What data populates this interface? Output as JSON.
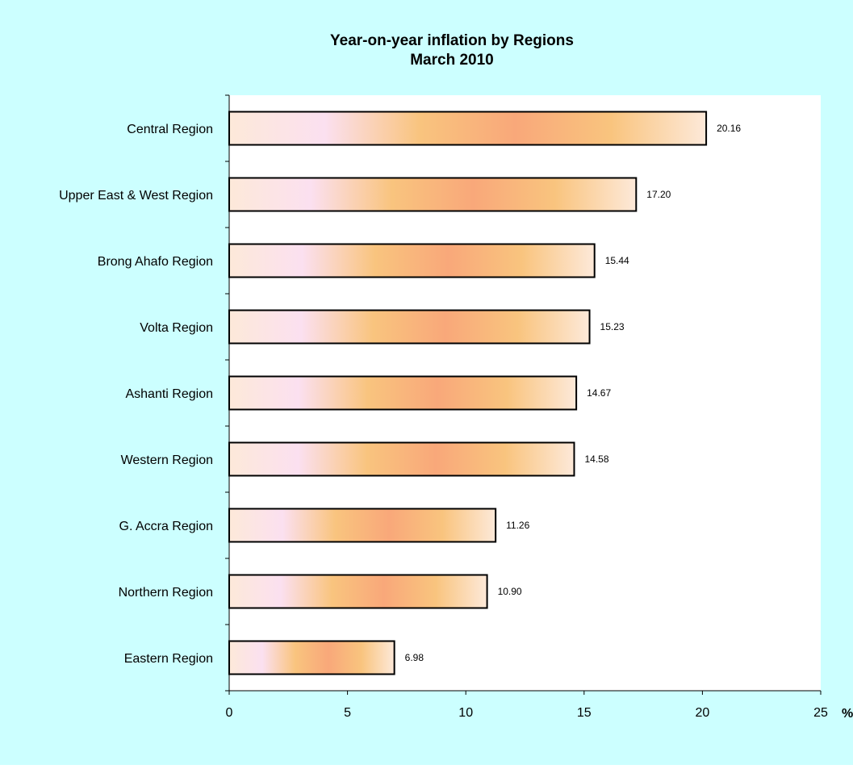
{
  "chart_data": {
    "type": "bar",
    "orientation": "horizontal",
    "title": "Year-on-year inflation by Regions",
    "subtitle": "March 2010",
    "categories": [
      "Central Region",
      "Upper East & West Region",
      "Brong Ahafo Region",
      "Volta Region",
      "Ashanti Region",
      "Western Region",
      "G. Accra Region",
      "Northern Region",
      "Eastern Region"
    ],
    "values": [
      20.16,
      17.2,
      15.44,
      15.23,
      14.67,
      14.58,
      11.26,
      10.9,
      6.98
    ],
    "data_labels": [
      "20.16",
      "17.20",
      "15.44",
      "15.23",
      "14.67",
      "14.58",
      "11.26",
      "10.90",
      "6.98"
    ],
    "xlim": [
      0,
      25
    ],
    "x_ticks": [
      "0",
      "5",
      "10",
      "15",
      "20",
      "25"
    ],
    "x_unit": "%",
    "grid": false,
    "legend": "none",
    "colors": {
      "background": "#ccffff",
      "plot_area": "#ffffff",
      "bar_outline": "#000000",
      "bar_gradient": [
        "#fde9d9",
        "#fbe0f0",
        "#f9c47e",
        "#f9a87a",
        "#f9c47e",
        "#fde9d9"
      ]
    }
  }
}
